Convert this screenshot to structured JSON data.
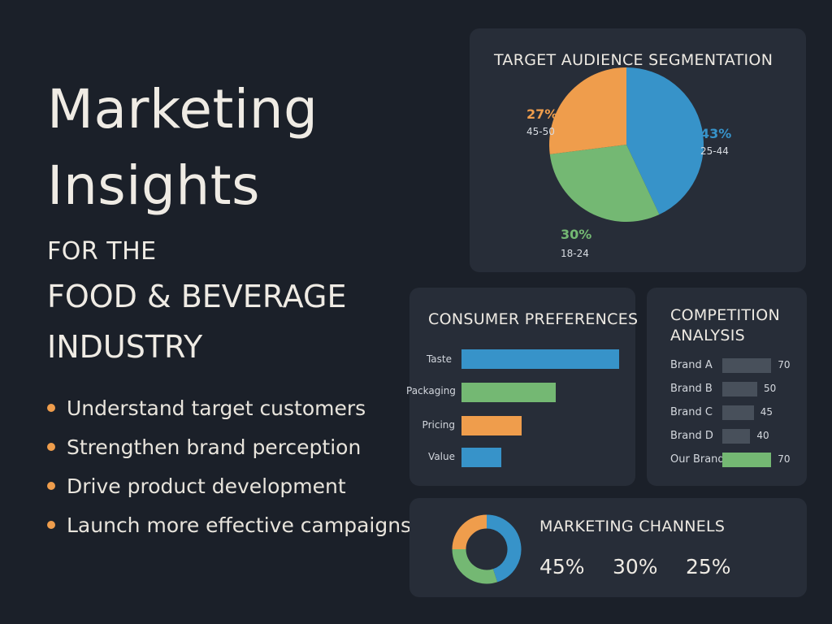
{
  "hero": {
    "title_line1": "Marketing",
    "title_line2": "Insights",
    "subtitle_line1": "FOR THE",
    "subtitle_line2": "FOOD & BEVERAGE",
    "subtitle_line3": "INDUSTRY"
  },
  "bullets": [
    "Understand target customers",
    "Strengthen brand perception",
    "Drive product development",
    "Launch more effective campaigns"
  ],
  "colors": {
    "background": "#1b2029",
    "card": "#272d38",
    "blue": "#3793c9",
    "orange": "#ef9d4c",
    "green": "#74b873",
    "gray_bar": "#48505b"
  },
  "chart_data": [
    {
      "type": "pie",
      "title": "TARGET AUDIENCE SEGMENTATION",
      "slices": [
        {
          "percent_label": "43%",
          "segment": "25-44",
          "value": 43,
          "color": "#3793c9"
        },
        {
          "percent_label": "30%",
          "segment": "18-24",
          "value": 30,
          "color": "#74b873"
        },
        {
          "percent_label": "27%",
          "segment": "45-50",
          "value": 27,
          "color": "#ef9d4c"
        }
      ]
    },
    {
      "type": "bar",
      "orientation": "horizontal",
      "title": "CONSUMER PREFERENCES",
      "categories": [
        "Taste",
        "Packaging",
        "Pricing",
        "Value"
      ],
      "values": [
        100,
        60,
        38,
        25
      ],
      "colors": [
        "#3793c9",
        "#74b873",
        "#ef9d4c",
        "#3793c9"
      ]
    },
    {
      "type": "bar",
      "orientation": "horizontal",
      "title_line1": "COMPETITION",
      "title_line2": "ANALYSIS",
      "categories": [
        "Brand A",
        "Brand B",
        "Brand C",
        "Brand D",
        "Our Brand"
      ],
      "values": [
        70,
        50,
        45,
        40,
        70
      ],
      "value_labels": [
        "70",
        "50",
        "45",
        "40",
        "70"
      ],
      "colors": [
        "#48505b",
        "#48505b",
        "#48505b",
        "#48505b",
        "#74b873"
      ]
    },
    {
      "type": "pie",
      "title": "MARKETING CHANNELS",
      "donut": true,
      "values": [
        45,
        30,
        25
      ],
      "value_labels": [
        "45%",
        "30%",
        "25%"
      ],
      "colors": [
        "#3793c9",
        "#74b873",
        "#ef9d4c"
      ]
    }
  ]
}
